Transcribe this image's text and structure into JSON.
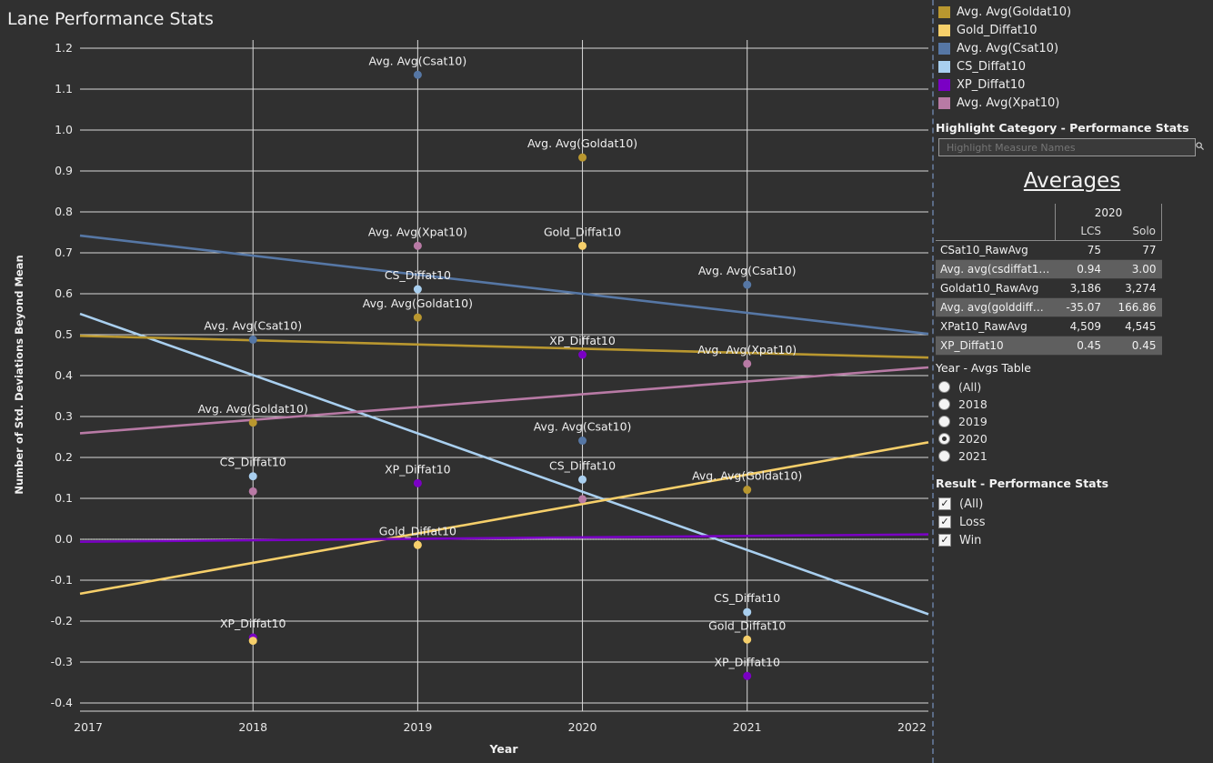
{
  "title": "Lane Performance Stats",
  "legend": [
    {
      "label": "Avg. Avg(Goldat10)",
      "color": "#b9972f"
    },
    {
      "label": "Gold_Diffat10",
      "color": "#f6cf6a"
    },
    {
      "label": "Avg. Avg(Csat10)",
      "color": "#5677a5"
    },
    {
      "label": "CS_Diffat10",
      "color": "#a9cfef"
    },
    {
      "label": "XP_Diffat10",
      "color": "#7a00c4"
    },
    {
      "label": "Avg. Avg(Xpat10)",
      "color": "#b87aa5"
    }
  ],
  "highlight": {
    "title": "Highlight Category - Performance Stats",
    "placeholder": "Highlight Measure Names"
  },
  "averages": {
    "title": "Averages",
    "year": "2020",
    "columns": [
      "LCS",
      "Solo"
    ],
    "rows": [
      {
        "label": "CSat10_RawAvg",
        "lcs": "75",
        "solo": "77"
      },
      {
        "label": "Avg. avg(csdiffat10) ..",
        "lcs": "0.94",
        "solo": "3.00"
      },
      {
        "label": "Goldat10_RawAvg",
        "lcs": "3,186",
        "solo": "3,274"
      },
      {
        "label": "Avg. avg(golddiffat1..",
        "lcs": "-35.07",
        "solo": "166.86"
      },
      {
        "label": "XPat10_RawAvg",
        "lcs": "4,509",
        "solo": "4,545"
      },
      {
        "label": "XP_Diffat10",
        "lcs": "0.45",
        "solo": "0.45"
      }
    ]
  },
  "year_filter": {
    "title": "Year - Avgs Table",
    "options": [
      "(All)",
      "2018",
      "2019",
      "2020",
      "2021"
    ],
    "selected": "2020"
  },
  "result_filter": {
    "title": "Result - Performance Stats",
    "options": [
      "(All)",
      "Loss",
      "Win"
    ]
  },
  "chart_data": {
    "type": "scatter",
    "title": "",
    "xlabel": "Year",
    "ylabel": "Number of Std. Deviations Beyond Mean",
    "xlim": [
      2016.95,
      2022.1
    ],
    "ylim": [
      -0.42,
      1.22
    ],
    "xticks": [
      2017,
      2018,
      2019,
      2020,
      2021,
      2022
    ],
    "yticks": [
      -0.4,
      -0.3,
      -0.2,
      -0.1,
      0.0,
      0.1,
      0.2,
      0.3,
      0.4,
      0.5,
      0.6,
      0.7,
      0.8,
      0.9,
      1.0,
      1.1,
      1.2
    ],
    "ytick_labels": [
      "-0.4",
      "-0.3",
      "-0.2",
      "-0.1",
      "0.0",
      "0.1",
      "0.2",
      "0.3",
      "0.4",
      "0.5",
      "0.6",
      "0.7",
      "0.8",
      "0.9",
      "1.0",
      "1.1",
      "1.2"
    ],
    "trend_lines": [
      {
        "series": "Avg. Avg(Csat10)",
        "color": "#5677a5",
        "x": [
          2016.95,
          2022.1
        ],
        "y": [
          0.742,
          0.502
        ]
      },
      {
        "series": "CS_Diffat10",
        "color": "#a9cfef",
        "x": [
          2016.95,
          2022.1
        ],
        "y": [
          0.551,
          -0.183
        ]
      },
      {
        "series": "Avg. Avg(Goldat10)",
        "color": "#b9972f",
        "x": [
          2016.95,
          2022.1
        ],
        "y": [
          0.497,
          0.444
        ]
      },
      {
        "series": "Avg. Avg(Xpat10)",
        "color": "#b87aa5",
        "x": [
          2016.95,
          2022.1
        ],
        "y": [
          0.259,
          0.42
        ]
      },
      {
        "series": "Gold_Diffat10",
        "color": "#f6cf6a",
        "x": [
          2016.95,
          2022.1
        ],
        "y": [
          -0.133,
          0.237
        ]
      },
      {
        "series": "XP_Diffat10",
        "color": "#7a00c4",
        "x": [
          2016.95,
          2022.1
        ],
        "y": [
          -0.006,
          0.012
        ]
      }
    ],
    "points": [
      {
        "series": "Avg. Avg(Csat10)",
        "color": "#5677a5",
        "x": 2018,
        "y": 0.488,
        "label": "Avg. Avg(Csat10)"
      },
      {
        "series": "Avg. Avg(Goldat10)",
        "color": "#b9972f",
        "x": 2018,
        "y": 0.285,
        "label": "Avg. Avg(Goldat10)"
      },
      {
        "series": "CS_Diffat10",
        "color": "#a9cfef",
        "x": 2018,
        "y": 0.154,
        "label": "CS_Diffat10"
      },
      {
        "series": "Avg. Avg(Xpat10)",
        "color": "#b87aa5",
        "x": 2018,
        "y": 0.117,
        "label": ""
      },
      {
        "series": "XP_Diffat10",
        "color": "#7a00c4",
        "x": 2018,
        "y": -0.24,
        "label": "XP_Diffat10"
      },
      {
        "series": "Gold_Diffat10",
        "color": "#f6cf6a",
        "x": 2018,
        "y": -0.248,
        "label": ""
      },
      {
        "series": "Avg. Avg(Csat10)",
        "color": "#5677a5",
        "x": 2019,
        "y": 1.135,
        "label": "Avg. Avg(Csat10)"
      },
      {
        "series": "Avg. Avg(Xpat10)",
        "color": "#b87aa5",
        "x": 2019,
        "y": 0.717,
        "label": "Avg. Avg(Xpat10)"
      },
      {
        "series": "CS_Diffat10",
        "color": "#a9cfef",
        "x": 2019,
        "y": 0.611,
        "label": "CS_Diffat10"
      },
      {
        "series": "Avg. Avg(Goldat10)",
        "color": "#b9972f",
        "x": 2019,
        "y": 0.542,
        "label": "Avg. Avg(Goldat10)"
      },
      {
        "series": "XP_Diffat10",
        "color": "#7a00c4",
        "x": 2019,
        "y": 0.137,
        "label": "XP_Diffat10"
      },
      {
        "series": "Gold_Diffat10",
        "color": "#f6cf6a",
        "x": 2019,
        "y": -0.014,
        "label": "Gold_Diffat10"
      },
      {
        "series": "Avg. Avg(Goldat10)",
        "color": "#b9972f",
        "x": 2020,
        "y": 0.933,
        "label": "Avg. Avg(Goldat10)"
      },
      {
        "series": "Gold_Diffat10",
        "color": "#f6cf6a",
        "x": 2020,
        "y": 0.717,
        "label": "Gold_Diffat10"
      },
      {
        "series": "XP_Diffat10",
        "color": "#7a00c4",
        "x": 2020,
        "y": 0.451,
        "label": "XP_Diffat10"
      },
      {
        "series": "Avg. Avg(Csat10)",
        "color": "#5677a5",
        "x": 2020,
        "y": 0.241,
        "label": "Avg. Avg(Csat10)"
      },
      {
        "series": "CS_Diffat10",
        "color": "#a9cfef",
        "x": 2020,
        "y": 0.146,
        "label": "CS_Diffat10"
      },
      {
        "series": "Avg. Avg(Xpat10)",
        "color": "#b87aa5",
        "x": 2020,
        "y": 0.098,
        "label": ""
      },
      {
        "series": "Avg. Avg(Csat10)",
        "color": "#5677a5",
        "x": 2021,
        "y": 0.622,
        "label": "Avg. Avg(Csat10)"
      },
      {
        "series": "Avg. Avg(Xpat10)",
        "color": "#b87aa5",
        "x": 2021,
        "y": 0.429,
        "label": "Avg. Avg(Xpat10)"
      },
      {
        "series": "Avg. Avg(Goldat10)",
        "color": "#b9972f",
        "x": 2021,
        "y": 0.121,
        "label": "Avg. Avg(Goldat10)"
      },
      {
        "series": "CS_Diffat10",
        "color": "#a9cfef",
        "x": 2021,
        "y": -0.178,
        "label": "CS_Diffat10"
      },
      {
        "series": "Gold_Diffat10",
        "color": "#f6cf6a",
        "x": 2021,
        "y": -0.245,
        "label": "Gold_Diffat10"
      },
      {
        "series": "XP_Diffat10",
        "color": "#7a00c4",
        "x": 2021,
        "y": -0.334,
        "label": "XP_Diffat10"
      }
    ],
    "grid": true,
    "legend_position": "top-right"
  }
}
